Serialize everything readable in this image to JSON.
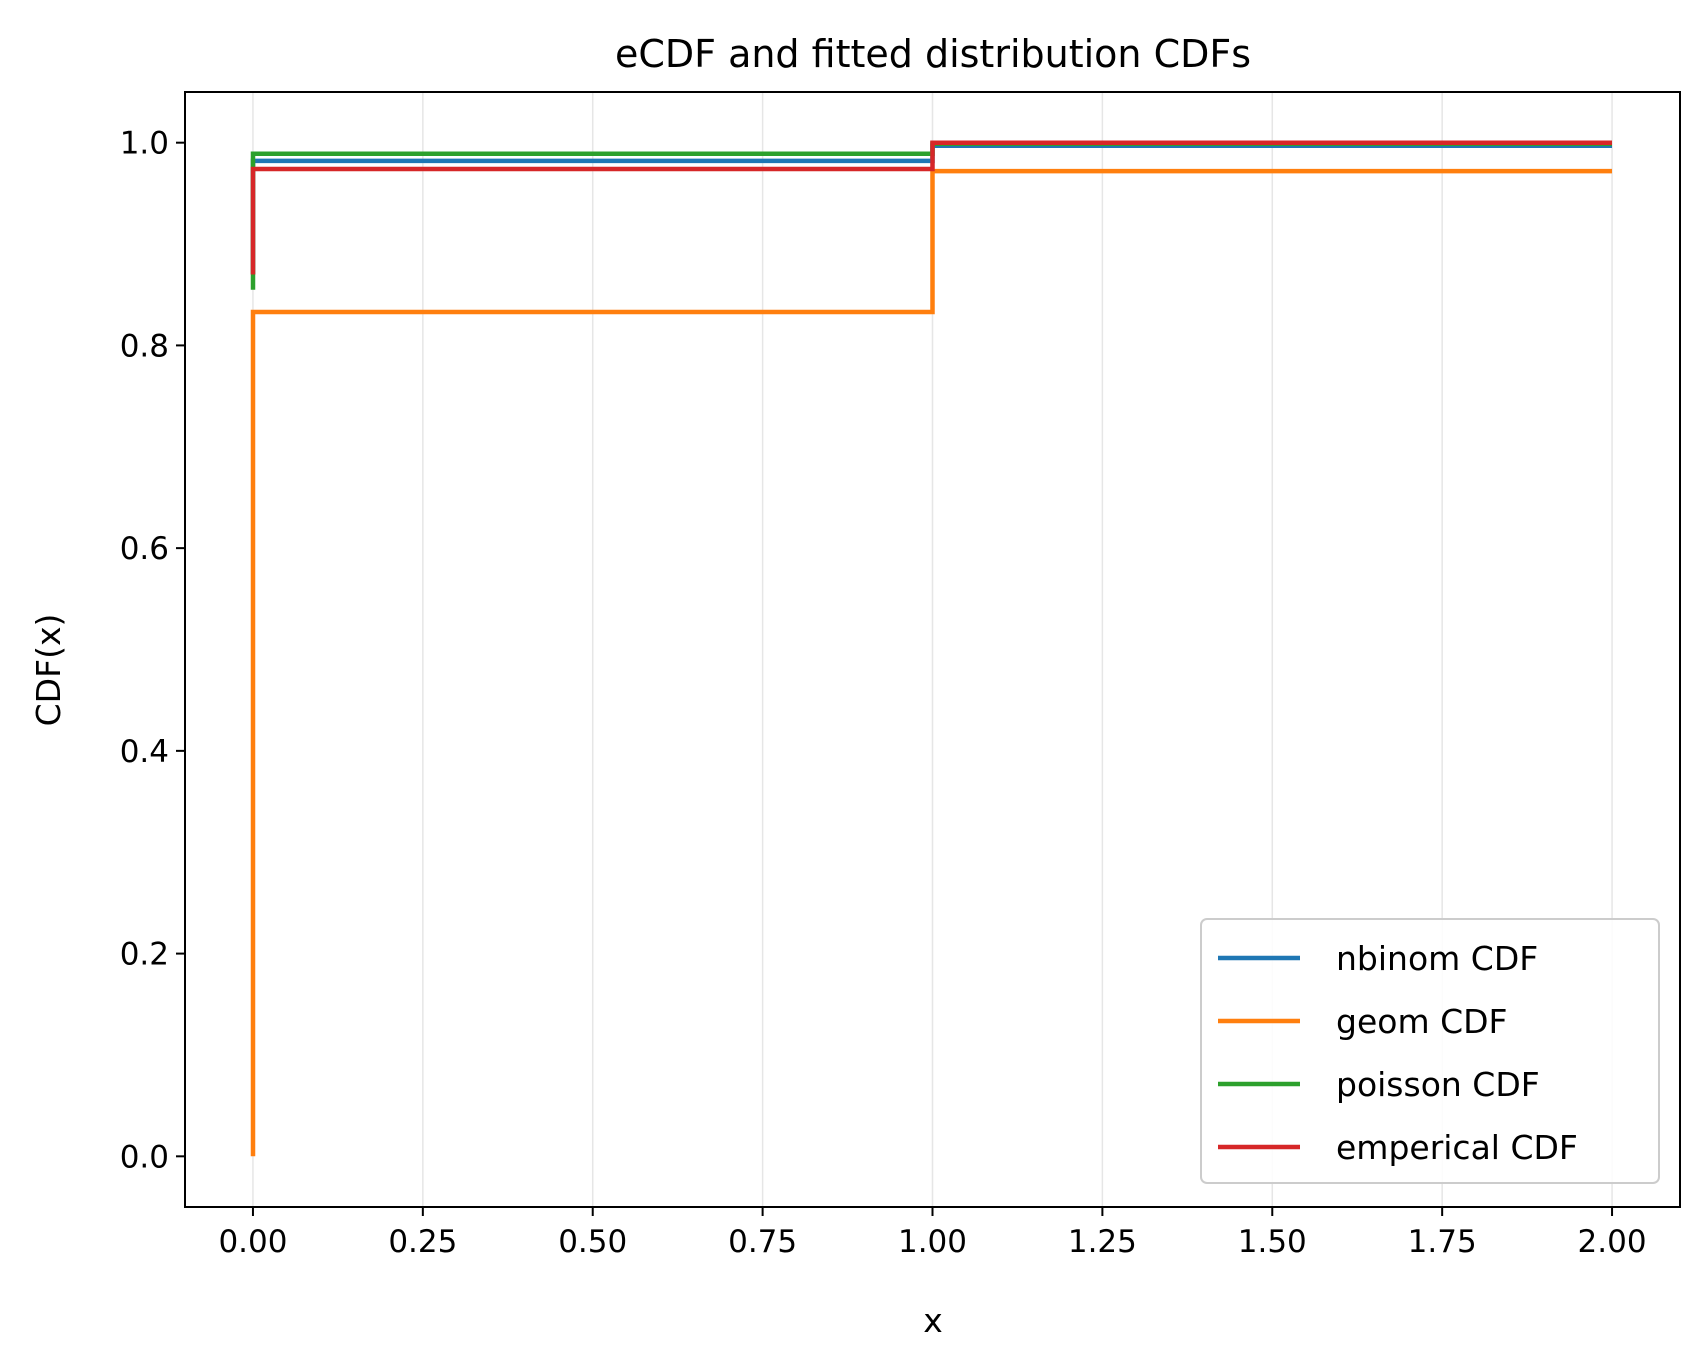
{
  "chart_data": {
    "type": "line",
    "title": "eCDF and fitted distribution CDFs",
    "xlabel": "x",
    "ylabel": "CDF(x)",
    "xlim": [
      -0.1,
      2.1
    ],
    "ylim": [
      -0.05,
      1.05
    ],
    "xticks": [
      "0.00",
      "0.25",
      "0.50",
      "0.75",
      "1.00",
      "1.25",
      "1.50",
      "1.75",
      "2.00"
    ],
    "yticks": [
      "0.0",
      "0.2",
      "0.4",
      "0.6",
      "0.8",
      "1.0"
    ],
    "grid": "vertical",
    "legend_position": "lower-right",
    "step": true,
    "series": [
      {
        "name": "nbinom CDF",
        "color": "#1f77b4",
        "points": [
          [
            0,
            0.87
          ],
          [
            0,
            0.982
          ],
          [
            1,
            0.982
          ],
          [
            1,
            0.997
          ],
          [
            2,
            0.997
          ]
        ]
      },
      {
        "name": "geom CDF",
        "color": "#ff7f0e",
        "points": [
          [
            0,
            0.0
          ],
          [
            0,
            0.833
          ],
          [
            1,
            0.833
          ],
          [
            1,
            0.972
          ],
          [
            2,
            0.972
          ]
        ]
      },
      {
        "name": "poisson CDF",
        "color": "#2ca02c",
        "points": [
          [
            0,
            0.855
          ],
          [
            0,
            0.989
          ],
          [
            1,
            0.989
          ],
          [
            1,
            0.999
          ],
          [
            2,
            0.999
          ]
        ]
      },
      {
        "name": "emperical CDF",
        "color": "#d62728",
        "points": [
          [
            0,
            0.87
          ],
          [
            0,
            0.974
          ],
          [
            1,
            0.974
          ],
          [
            1,
            1.0
          ],
          [
            2,
            1.0
          ]
        ]
      }
    ]
  }
}
